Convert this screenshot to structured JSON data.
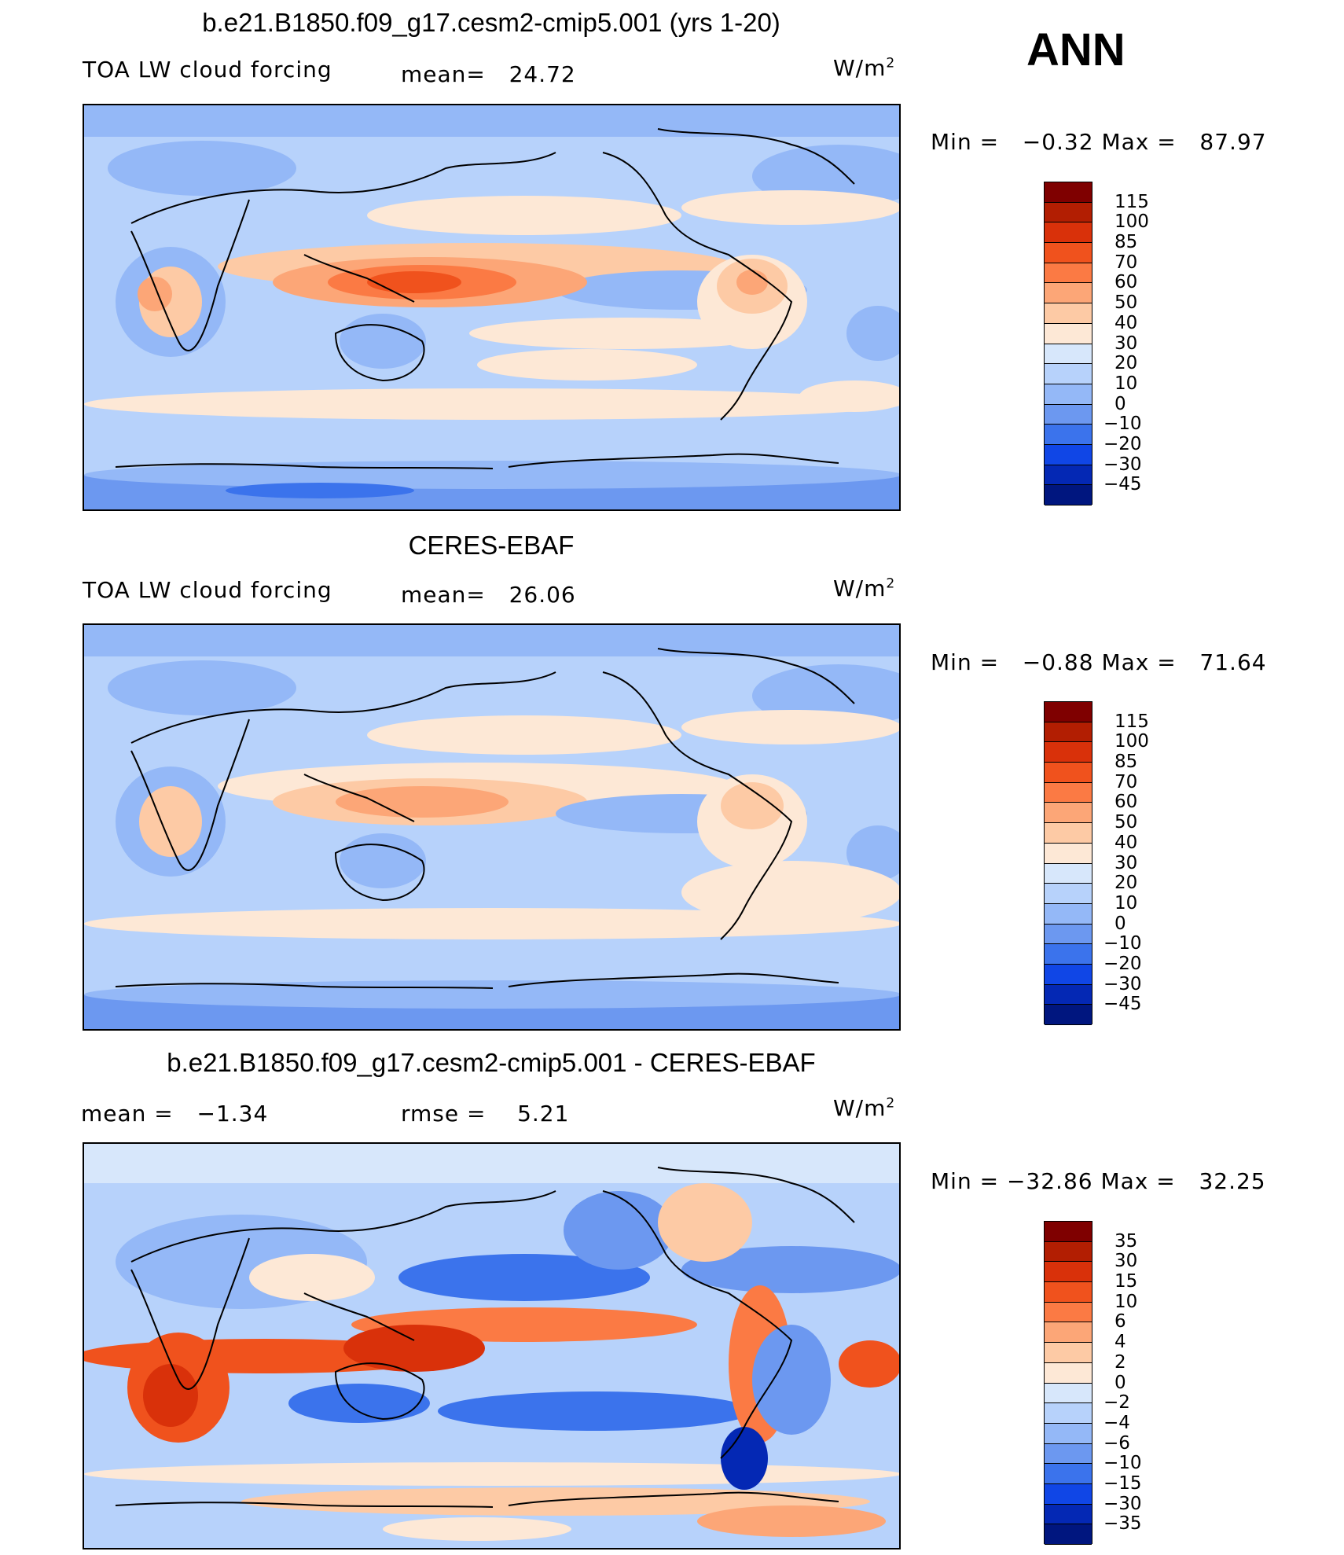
{
  "annotation": "ANN",
  "panels": [
    {
      "title": "b.e21.B1850.f09_g17.cesm2-cmip5.001 (yrs 1-20)",
      "left_label": "TOA LW cloud forcing",
      "mid_label": "mean=",
      "mid_value": "24.72",
      "units": "W/m",
      "units_sup": "2",
      "min_label": "Min =",
      "min_value": "−0.32",
      "max_label": "Max =",
      "max_value": "87.97",
      "levels": [
        "115",
        "100",
        "85",
        "70",
        "60",
        "50",
        "40",
        "30",
        "20",
        "10",
        "0",
        "−10",
        "−20",
        "−30",
        "−45"
      ],
      "colors": [
        "#7f0000",
        "#b21e02",
        "#d9310a",
        "#f0521d",
        "#fb7a44",
        "#fca677",
        "#fdcaa5",
        "#fde8d6",
        "#d7e7fb",
        "#b7d2fb",
        "#94b8f7",
        "#6c98f0",
        "#3b73ec",
        "#1046e6",
        "#0428b4",
        "#00167f"
      ]
    },
    {
      "title": "CERES-EBAF",
      "left_label": "TOA LW cloud forcing",
      "mid_label": "mean=",
      "mid_value": "26.06",
      "units": "W/m",
      "units_sup": "2",
      "min_label": "Min =",
      "min_value": "−0.88",
      "max_label": "Max =",
      "max_value": "71.64",
      "levels": [
        "115",
        "100",
        "85",
        "70",
        "60",
        "50",
        "40",
        "30",
        "20",
        "10",
        "0",
        "−10",
        "−20",
        "−30",
        "−45"
      ],
      "colors": [
        "#7f0000",
        "#b21e02",
        "#d9310a",
        "#f0521d",
        "#fb7a44",
        "#fca677",
        "#fdcaa5",
        "#fde8d6",
        "#d7e7fb",
        "#b7d2fb",
        "#94b8f7",
        "#6c98f0",
        "#3b73ec",
        "#1046e6",
        "#0428b4",
        "#00167f"
      ]
    },
    {
      "title": "b.e21.B1850.f09_g17.cesm2-cmip5.001 - CERES-EBAF",
      "left_label": "mean =",
      "left_value": "−1.34",
      "mid_label": "rmse =",
      "mid_value": "5.21",
      "units": "W/m",
      "units_sup": "2",
      "min_label": "Min =",
      "min_value": "−32.86",
      "max_label": "Max =",
      "max_value": "32.25",
      "levels": [
        "35",
        "30",
        "15",
        "10",
        "6",
        "4",
        "2",
        "0",
        "−2",
        "−4",
        "−6",
        "−10",
        "−15",
        "−30",
        "−35"
      ],
      "colors": [
        "#7f0000",
        "#b21e02",
        "#d9310a",
        "#f0521d",
        "#fb7a44",
        "#fca677",
        "#fdcaa5",
        "#fde8d6",
        "#d7e7fb",
        "#b7d2fb",
        "#94b8f7",
        "#6c98f0",
        "#3b73ec",
        "#1046e6",
        "#0428b4",
        "#00167f"
      ]
    }
  ]
}
